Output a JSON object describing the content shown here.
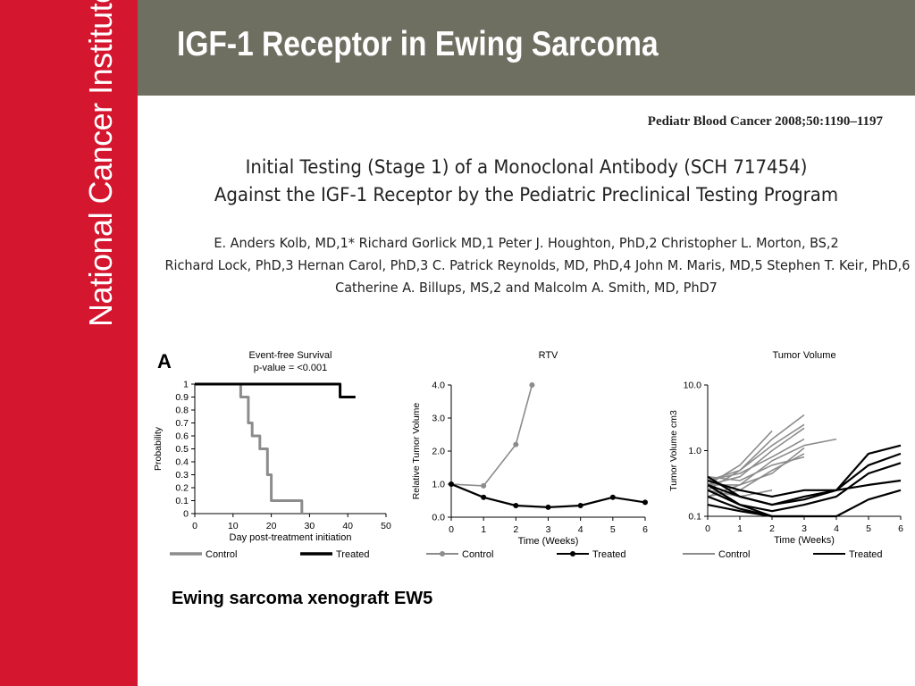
{
  "sidebar": {
    "org_name": "National Cancer Institute"
  },
  "header": {
    "title": "IGF-1 Receptor in Ewing Sarcoma"
  },
  "paper": {
    "journal_ref": "Pediatr Blood Cancer 2008;50:1190–1197",
    "title_lines": [
      "Initial Testing (Stage 1) of a Monoclonal Antibody (SCH 717454)",
      "Against the IGF-1 Receptor by the Pediatric Preclinical Testing Program"
    ],
    "author_lines": [
      "E. Anders Kolb, MD,1* Richard Gorlick MD,1 Peter J. Houghton, PhD,2 Christopher L. Morton, BS,2",
      "Richard Lock, PhD,3 Hernan Carol, PhD,3 C. Patrick Reynolds, MD, PhD,4 John M. Maris, MD,5 Stephen T. Keir, PhD,6",
      "Catherine A. Billups, MS,2 and Malcolm A. Smith, MD, PhD7"
    ]
  },
  "figure": {
    "panel_label": "A",
    "caption": "Ewing sarcoma xenograft EW5"
  },
  "chart_data": [
    {
      "type": "line",
      "title": "Event-free Survival",
      "subtitle": "p-value = <0.001",
      "xlabel": "Day post-treatment initiation",
      "ylabel": "Probability",
      "xlim": [
        0,
        50
      ],
      "ylim": [
        0,
        1
      ],
      "xticks": [
        "0",
        "10",
        "20",
        "30",
        "40",
        "50"
      ],
      "yticks": [
        "0",
        "0.1",
        "0.2",
        "0.3",
        "0.4",
        "0.5",
        "0.6",
        "0.7",
        "0.8",
        "0.9",
        "1"
      ],
      "step": true,
      "colors": {
        "Control": "#8c8c8c",
        "Treated": "#000000"
      },
      "series": [
        {
          "name": "Control",
          "x": [
            0,
            12,
            14,
            15,
            17,
            19,
            20,
            28
          ],
          "y": [
            1,
            0.9,
            0.7,
            0.6,
            0.5,
            0.3,
            0.1,
            0
          ]
        },
        {
          "name": "Treated",
          "x": [
            0,
            38,
            42
          ],
          "y": [
            1,
            0.9,
            0.9
          ]
        }
      ]
    },
    {
      "type": "line",
      "title": "RTV",
      "xlabel": "Time (Weeks)",
      "ylabel": "Relative Tumor Volume",
      "xlim": [
        0,
        6
      ],
      "ylim": [
        0,
        4
      ],
      "xticks": [
        "0",
        "1",
        "2",
        "3",
        "4",
        "5",
        "6"
      ],
      "yticks": [
        "0.0",
        "1.0",
        "2.0",
        "3.0",
        "4.0"
      ],
      "colors": {
        "Control": "#8c8c8c",
        "Treated": "#000000"
      },
      "series": [
        {
          "name": "Control",
          "x": [
            0,
            1,
            2,
            2.5
          ],
          "y": [
            1,
            0.95,
            2.2,
            4.0
          ]
        },
        {
          "name": "Treated",
          "x": [
            0,
            1,
            2,
            3,
            4,
            5,
            6
          ],
          "y": [
            1,
            0.6,
            0.35,
            0.3,
            0.35,
            0.6,
            0.45
          ]
        }
      ]
    },
    {
      "type": "line",
      "title": "Tumor Volume",
      "xlabel": "Time (Weeks)",
      "ylabel": "Tumor Volume cm3",
      "xlim": [
        0,
        6
      ],
      "ylim": [
        0.1,
        10
      ],
      "yscale": "log",
      "xticks": [
        "0",
        "1",
        "2",
        "3",
        "4",
        "5",
        "6"
      ],
      "yticks": [
        "0.1",
        "1.0",
        "10.0"
      ],
      "colors": {
        "Control": "#8c8c8c",
        "Treated": "#000000"
      },
      "series": [
        {
          "name": "Control",
          "group": "Control",
          "x": [
            0,
            1,
            2,
            3
          ],
          "y": [
            0.25,
            0.5,
            1.5,
            3.5
          ]
        },
        {
          "name": "Control",
          "group": "Control",
          "x": [
            0,
            1,
            2,
            3
          ],
          "y": [
            0.3,
            0.4,
            1.0,
            2.2
          ]
        },
        {
          "name": "Control",
          "group": "Control",
          "x": [
            0,
            1,
            2,
            3,
            4
          ],
          "y": [
            0.2,
            0.3,
            0.7,
            1.2,
            1.5
          ]
        },
        {
          "name": "Control",
          "group": "Control",
          "x": [
            0,
            1,
            2,
            3
          ],
          "y": [
            0.35,
            0.45,
            0.8,
            1.5
          ]
        },
        {
          "name": "Control",
          "group": "Control",
          "x": [
            0,
            1,
            2,
            3
          ],
          "y": [
            0.2,
            0.25,
            0.5,
            0.9
          ]
        },
        {
          "name": "Control",
          "group": "Control",
          "x": [
            0,
            1,
            2
          ],
          "y": [
            0.3,
            0.6,
            2.0
          ]
        },
        {
          "name": "Control",
          "group": "Control",
          "x": [
            0,
            1,
            2,
            3
          ],
          "y": [
            0.4,
            0.35,
            0.6,
            0.8
          ]
        },
        {
          "name": "Control",
          "group": "Control",
          "x": [
            0,
            1,
            2
          ],
          "y": [
            0.25,
            0.2,
            0.25
          ]
        },
        {
          "name": "Control",
          "group": "Control",
          "x": [
            0,
            1,
            2,
            3
          ],
          "y": [
            0.3,
            0.3,
            0.45,
            1.1
          ]
        },
        {
          "name": "Control",
          "group": "Control",
          "x": [
            0,
            1,
            2,
            3
          ],
          "y": [
            0.35,
            0.5,
            1.2,
            2.5
          ]
        },
        {
          "name": "Treated",
          "group": "Treated",
          "x": [
            0,
            1,
            2,
            3,
            4,
            5,
            6
          ],
          "y": [
            0.3,
            0.2,
            0.15,
            0.2,
            0.25,
            0.9,
            1.2
          ]
        },
        {
          "name": "Treated",
          "group": "Treated",
          "x": [
            0,
            1,
            2,
            3,
            4,
            5,
            6
          ],
          "y": [
            0.35,
            0.25,
            0.2,
            0.25,
            0.25,
            0.6,
            0.9
          ]
        },
        {
          "name": "Treated",
          "group": "Treated",
          "x": [
            0,
            1,
            2,
            3,
            4,
            5,
            6
          ],
          "y": [
            0.25,
            0.15,
            0.12,
            0.15,
            0.2,
            0.45,
            0.65
          ]
        },
        {
          "name": "Treated",
          "group": "Treated",
          "x": [
            0,
            1,
            2,
            3
          ],
          "y": [
            0.2,
            0.13,
            0.1,
            0.1
          ]
        },
        {
          "name": "Treated",
          "group": "Treated",
          "x": [
            0,
            1,
            2,
            3,
            4,
            5,
            6
          ],
          "y": [
            0.4,
            0.2,
            0.15,
            0.18,
            0.25,
            0.3,
            0.35
          ]
        },
        {
          "name": "Treated",
          "group": "Treated",
          "x": [
            0,
            1,
            2
          ],
          "y": [
            0.3,
            0.15,
            0.1
          ]
        },
        {
          "name": "Treated",
          "group": "Treated",
          "x": [
            0,
            1,
            2,
            3
          ],
          "y": [
            0.15,
            0.12,
            0.1,
            0.08
          ]
        },
        {
          "name": "Treated",
          "group": "Treated",
          "x": [
            3,
            4,
            5,
            6
          ],
          "y": [
            0.08,
            0.1,
            0.18,
            0.25
          ]
        }
      ]
    }
  ]
}
